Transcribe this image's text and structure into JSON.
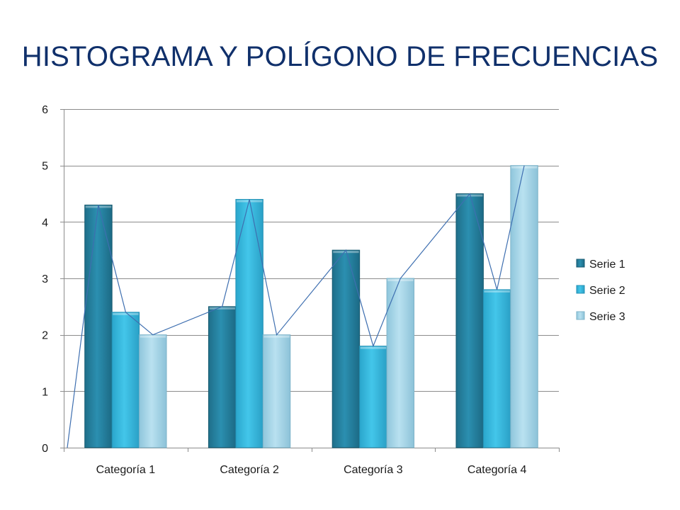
{
  "slide": {
    "title": "HISTOGRAMA Y POLÍGONO DE FRECUENCIAS"
  },
  "chart_data": {
    "type": "bar",
    "title": "",
    "xlabel": "",
    "ylabel": "",
    "categories": [
      "Categoría 1",
      "Categoría 2",
      "Categoría 3",
      "Categoría 4"
    ],
    "series": [
      {
        "name": "Serie 1",
        "values": [
          4.3,
          2.5,
          3.5,
          4.5
        ],
        "color": "#2a8bab"
      },
      {
        "name": "Serie 2",
        "values": [
          2.4,
          4.4,
          1.8,
          2.8
        ],
        "color": "#3cbde0"
      },
      {
        "name": "Serie 3",
        "values": [
          2.0,
          2.0,
          3.0,
          5.0
        ],
        "color": "#a9d8ea"
      }
    ],
    "ylim": [
      0,
      6
    ],
    "yticks": [
      0,
      1,
      2,
      3,
      4,
      5,
      6
    ],
    "grid": true,
    "legend": "right",
    "overlay_polygon": {
      "type": "line",
      "color": "#3e6fb0",
      "start_value": 0
    }
  }
}
